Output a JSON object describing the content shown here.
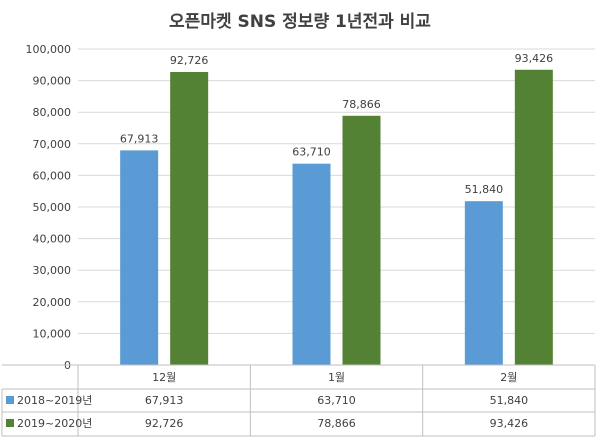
{
  "chart_data": {
    "type": "bar",
    "title": "오픈마켓 SNS 정보량 1년전과 비교",
    "categories": [
      "12월",
      "1월",
      "2월"
    ],
    "series": [
      {
        "name": "2018~2019년",
        "color": "#5b9bd5",
        "values": [
          67913,
          63710,
          51840
        ]
      },
      {
        "name": "2019~2020년",
        "color": "#548235",
        "values": [
          92726,
          78866,
          93426
        ]
      }
    ],
    "value_labels": [
      [
        "67,913",
        "63,710",
        "51,840"
      ],
      [
        "92,726",
        "78,866",
        "93,426"
      ]
    ],
    "ylim": [
      0,
      100000
    ],
    "yticks": [
      0,
      10000,
      20000,
      30000,
      40000,
      50000,
      60000,
      70000,
      80000,
      90000,
      100000
    ],
    "ytick_labels": [
      "0",
      "10,000",
      "20,000",
      "30,000",
      "40,000",
      "50,000",
      "60,000",
      "70,000",
      "80,000",
      "90,000",
      "100,000"
    ],
    "grid": true,
    "legend": "data-table-below",
    "xlabel": "",
    "ylabel": ""
  }
}
